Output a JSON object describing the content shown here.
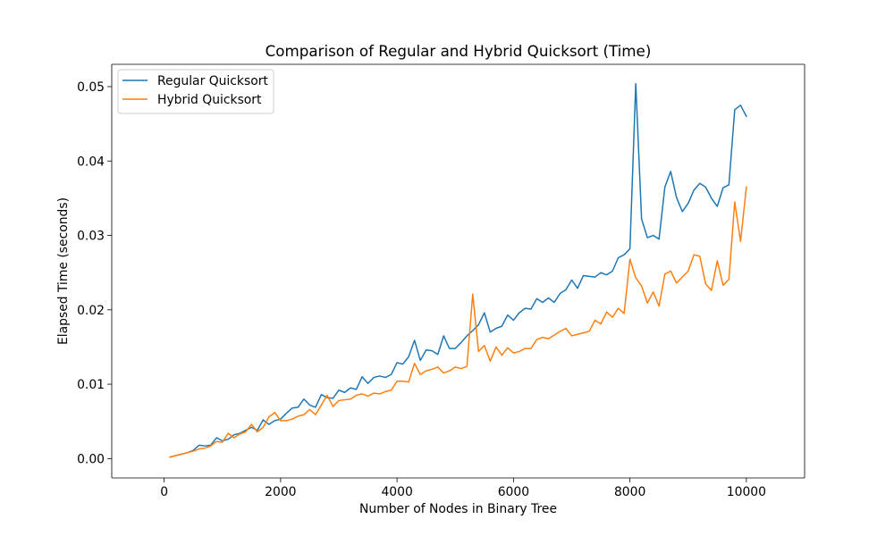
{
  "chart_data": {
    "type": "line",
    "title": "Comparison of Regular and Hybrid Quicksort (Time)",
    "xlabel": "Number of Nodes in Binary Tree",
    "ylabel": "Elapsed Time (seconds)",
    "xlim": [
      -900,
      11000
    ],
    "ylim": [
      -0.0026,
      0.053
    ],
    "xticks": [
      0,
      2000,
      4000,
      6000,
      8000,
      10000
    ],
    "xtick_labels": [
      "0",
      "2000",
      "4000",
      "6000",
      "8000",
      "10000"
    ],
    "yticks": [
      0.0,
      0.01,
      0.02,
      0.03,
      0.04,
      0.05
    ],
    "ytick_labels": [
      "0.00",
      "0.01",
      "0.02",
      "0.03",
      "0.04",
      "0.05"
    ],
    "grid": false,
    "legend_position": "upper-left",
    "x": [
      100,
      200,
      300,
      400,
      500,
      600,
      700,
      800,
      900,
      1000,
      1100,
      1200,
      1300,
      1400,
      1500,
      1600,
      1700,
      1800,
      1900,
      2000,
      2100,
      2200,
      2300,
      2400,
      2500,
      2600,
      2700,
      2800,
      2900,
      3000,
      3100,
      3200,
      3300,
      3400,
      3500,
      3600,
      3700,
      3800,
      3900,
      4000,
      4100,
      4200,
      4300,
      4400,
      4500,
      4600,
      4700,
      4800,
      4900,
      5000,
      5100,
      5200,
      5300,
      5400,
      5500,
      5600,
      5700,
      5800,
      5900,
      6000,
      6100,
      6200,
      6300,
      6400,
      6500,
      6600,
      6700,
      6800,
      6900,
      7000,
      7100,
      7200,
      7300,
      7400,
      7500,
      7600,
      7700,
      7800,
      7900,
      8000,
      8100,
      8200,
      8300,
      8400,
      8500,
      8600,
      8700,
      8800,
      8900,
      9000,
      9100,
      9200,
      9300,
      9400,
      9500,
      9600,
      9700,
      9800,
      9900,
      10000
    ],
    "series": [
      {
        "name": "Regular Quicksort",
        "color": "#1f77b4",
        "values": [
          0.0002,
          0.0004,
          0.0006,
          0.0008,
          0.0011,
          0.0018,
          0.0017,
          0.0018,
          0.0028,
          0.0024,
          0.0026,
          0.0032,
          0.0034,
          0.0038,
          0.0042,
          0.0038,
          0.0052,
          0.0046,
          0.0051,
          0.0053,
          0.0061,
          0.0068,
          0.0069,
          0.008,
          0.0072,
          0.0069,
          0.0086,
          0.0082,
          0.0081,
          0.0092,
          0.0089,
          0.0095,
          0.0093,
          0.011,
          0.0101,
          0.0109,
          0.0111,
          0.0109,
          0.0113,
          0.0129,
          0.0127,
          0.0137,
          0.0159,
          0.0132,
          0.0146,
          0.0145,
          0.014,
          0.0165,
          0.0148,
          0.0148,
          0.0156,
          0.0165,
          0.0172,
          0.018,
          0.0196,
          0.017,
          0.0175,
          0.0178,
          0.0193,
          0.0186,
          0.0196,
          0.0202,
          0.0201,
          0.0215,
          0.021,
          0.0216,
          0.021,
          0.0222,
          0.0227,
          0.024,
          0.0229,
          0.0246,
          0.0245,
          0.0244,
          0.025,
          0.0247,
          0.0252,
          0.027,
          0.0274,
          0.0282,
          0.0504,
          0.0322,
          0.0297,
          0.03,
          0.0295,
          0.0365,
          0.0386,
          0.0351,
          0.0332,
          0.0343,
          0.0361,
          0.037,
          0.0365,
          0.035,
          0.0339,
          0.0364,
          0.0368,
          0.0469,
          0.0475,
          0.046
        ]
      },
      {
        "name": "Hybrid Quicksort",
        "color": "#ff7f0e",
        "values": [
          0.0002,
          0.0004,
          0.0006,
          0.0008,
          0.001,
          0.0013,
          0.0014,
          0.0017,
          0.0023,
          0.0022,
          0.0034,
          0.0028,
          0.0033,
          0.0036,
          0.0046,
          0.0036,
          0.0042,
          0.0056,
          0.0062,
          0.0051,
          0.0051,
          0.0053,
          0.0057,
          0.0059,
          0.0066,
          0.0059,
          0.0072,
          0.0085,
          0.007,
          0.0078,
          0.0079,
          0.008,
          0.0085,
          0.0087,
          0.0084,
          0.0088,
          0.0087,
          0.009,
          0.0092,
          0.0104,
          0.0104,
          0.0103,
          0.0128,
          0.0113,
          0.0118,
          0.012,
          0.0123,
          0.0115,
          0.0118,
          0.0123,
          0.0121,
          0.0124,
          0.0221,
          0.0144,
          0.0152,
          0.0131,
          0.015,
          0.0139,
          0.0149,
          0.0142,
          0.0144,
          0.0148,
          0.0148,
          0.016,
          0.0163,
          0.0161,
          0.0166,
          0.0171,
          0.0175,
          0.0165,
          0.0167,
          0.0169,
          0.0171,
          0.0186,
          0.0181,
          0.0197,
          0.019,
          0.0202,
          0.0195,
          0.0268,
          0.0243,
          0.0232,
          0.0209,
          0.0224,
          0.0205,
          0.0248,
          0.0252,
          0.0236,
          0.0244,
          0.0252,
          0.0274,
          0.0272,
          0.0235,
          0.0226,
          0.0266,
          0.0233,
          0.0241,
          0.0345,
          0.0292,
          0.0365
        ]
      }
    ]
  }
}
